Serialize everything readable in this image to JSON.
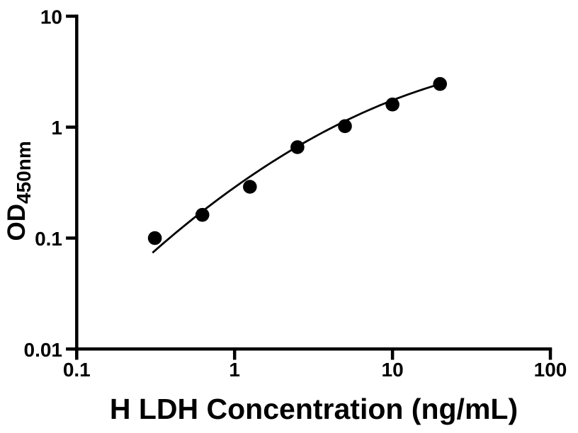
{
  "chart_data": {
    "type": "scatter",
    "title": "",
    "xlabel": "H LDH Concentration (ng/mL)",
    "ylabel_main": "OD",
    "ylabel_subscript": "450nm",
    "x_scale": "log",
    "y_scale": "log",
    "xlim": [
      0.1,
      100
    ],
    "ylim": [
      0.01,
      10
    ],
    "x_tick_values": [
      0.1,
      1,
      10,
      100
    ],
    "x_tick_labels": [
      "0.1",
      "1",
      "10",
      "100"
    ],
    "y_tick_values": [
      0.01,
      0.1,
      1,
      10
    ],
    "y_tick_labels": [
      "0.01",
      "0.1",
      "1",
      "10"
    ],
    "points": [
      {
        "x": 0.3125,
        "y": 0.1
      },
      {
        "x": 0.625,
        "y": 0.162
      },
      {
        "x": 1.25,
        "y": 0.29
      },
      {
        "x": 2.5,
        "y": 0.66
      },
      {
        "x": 5,
        "y": 1.02
      },
      {
        "x": 10,
        "y": 1.6
      },
      {
        "x": 20,
        "y": 2.45
      }
    ],
    "fit_curve": {
      "model": "quadratic_in_loglog",
      "coefficients": {
        "a": -0.5425,
        "b": 1.0146,
        "c": -0.23
      },
      "logx_range": [
        -0.52,
        1.3063
      ]
    },
    "marker_color": "#000000",
    "line_color": "#000000",
    "axis_color": "#000000",
    "background_color": "#ffffff",
    "grid": false,
    "legend": false
  }
}
